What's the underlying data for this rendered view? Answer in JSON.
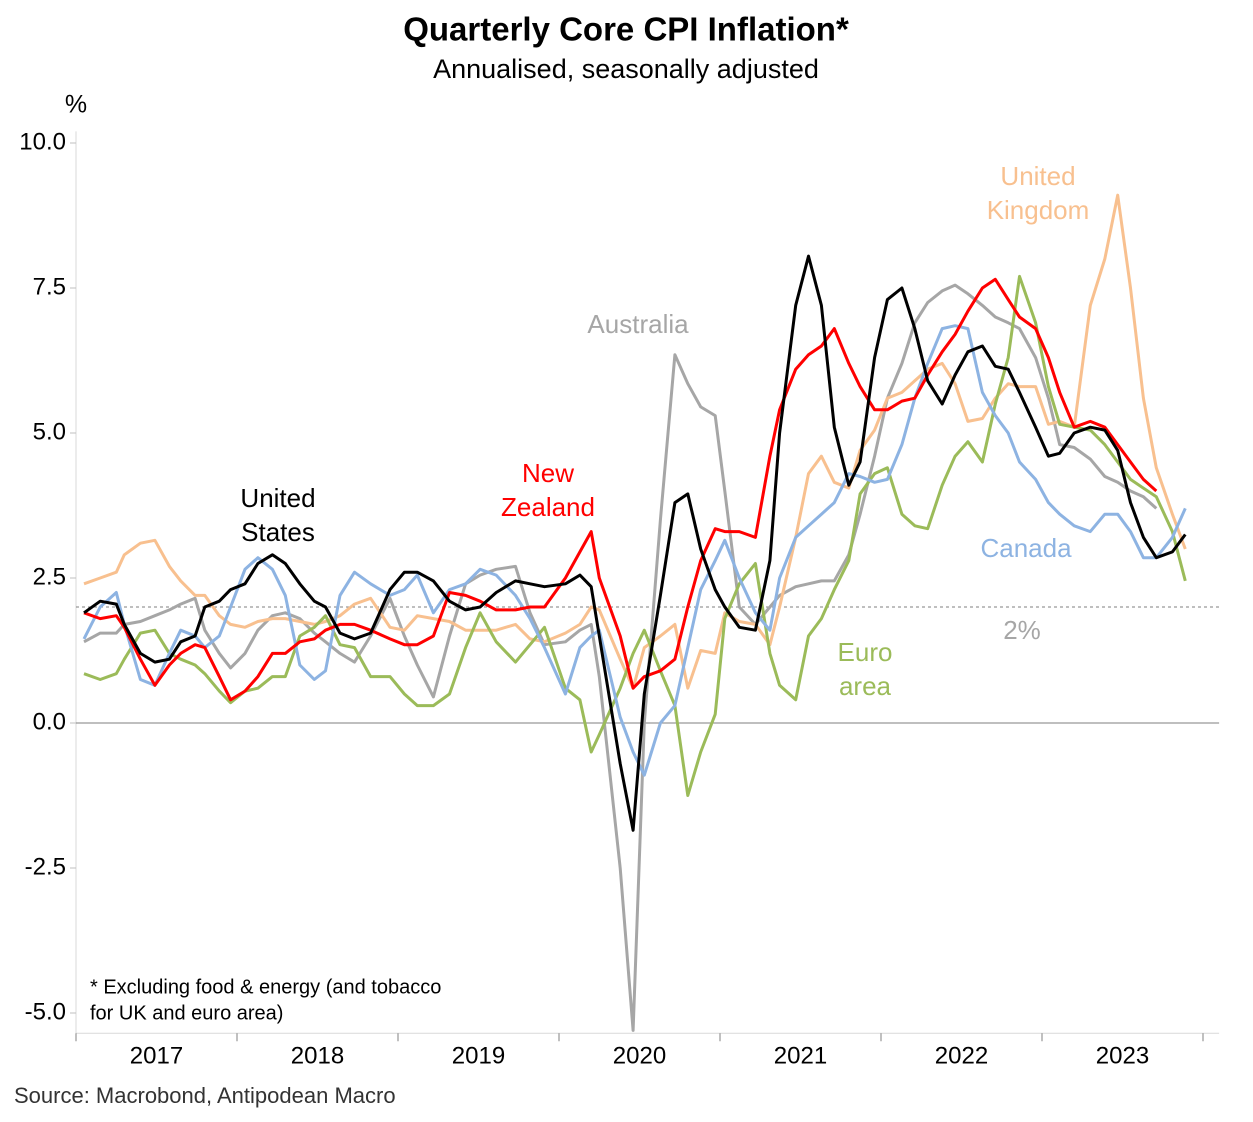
{
  "chart_data": {
    "type": "line",
    "title": "Quarterly Core CPI Inflation*",
    "subtitle": "Annualised, seasonally adjusted",
    "y_unit": "%",
    "footnote": [
      "* Excluding food & energy (and tobacco",
      "for UK and euro area)"
    ],
    "source": "Source: Macrobond, Antipodean Macro",
    "xlim": [
      2017,
      2024.1
    ],
    "xticks": [
      {
        "value": 2017.5,
        "label": "2017"
      },
      {
        "value": 2018.5,
        "label": "2018"
      },
      {
        "value": 2019.5,
        "label": "2019"
      },
      {
        "value": 2020.5,
        "label": "2020"
      },
      {
        "value": 2021.5,
        "label": "2021"
      },
      {
        "value": 2022.5,
        "label": "2022"
      },
      {
        "value": 2023.5,
        "label": "2023"
      }
    ],
    "xtick_marks": [
      2017,
      2018,
      2019,
      2020,
      2021,
      2022,
      2023,
      2024
    ],
    "ylim": [
      -5.35,
      10.2
    ],
    "yticks": [
      {
        "value": 10,
        "label": "10.0"
      },
      7.5,
      {
        "value": 5,
        "label": "5.0"
      },
      2.5,
      {
        "value": 0,
        "label": "0.0"
      },
      -2.5,
      {
        "value": -5,
        "label": "-5.0"
      }
    ],
    "reference_line": {
      "value": 2,
      "label": "2%"
    },
    "x": [
      2017.05,
      2017.15,
      2017.25,
      2017.3,
      2017.4,
      2017.49,
      2017.58,
      2017.65,
      2017.74,
      2017.8,
      2017.89,
      2017.96,
      2018.05,
      2018.13,
      2018.22,
      2018.3,
      2018.39,
      2018.48,
      2018.55,
      2018.64,
      2018.73,
      2018.83,
      2018.95,
      2019.04,
      2019.12,
      2019.22,
      2019.32,
      2019.42,
      2019.51,
      2019.61,
      2019.73,
      2019.82,
      2019.91,
      2020.04,
      2020.13,
      2020.2,
      2020.25,
      2020.38,
      2020.46,
      2020.53,
      2020.63,
      2020.72,
      2020.8,
      2020.88,
      2020.97,
      2021.03,
      2021.12,
      2021.22,
      2021.31,
      2021.37,
      2021.47,
      2021.55,
      2021.63,
      2021.71,
      2021.8,
      2021.87,
      2021.96,
      2022.04,
      2022.13,
      2022.21,
      2022.29,
      2022.38,
      2022.46,
      2022.54,
      2022.63,
      2022.71,
      2022.79,
      2022.86,
      2022.96,
      2023.04,
      2023.11,
      2023.2,
      2023.3,
      2023.39,
      2023.47,
      2023.55,
      2023.63,
      2023.71,
      2023.81,
      2023.89
    ],
    "series": [
      {
        "name": "Australia",
        "color": "#a6a6a6",
        "values": [
          1.4,
          1.55,
          1.55,
          1.7,
          1.75,
          1.85,
          1.95,
          2.05,
          2.15,
          1.6,
          1.2,
          0.95,
          1.2,
          1.6,
          1.85,
          1.9,
          1.8,
          1.55,
          1.4,
          1.2,
          1.05,
          1.5,
          2.15,
          1.5,
          1.0,
          0.45,
          1.5,
          2.4,
          2.55,
          2.65,
          2.7,
          1.9,
          1.35,
          1.4,
          1.6,
          1.7,
          0.8,
          -2.5,
          -5.3,
          0.0,
          3.5,
          6.35,
          5.85,
          5.45,
          5.3,
          4.0,
          2.0,
          1.7,
          2.0,
          2.2,
          2.35,
          2.4,
          2.45,
          2.45,
          2.9,
          3.6,
          4.6,
          5.6,
          6.2,
          6.9,
          7.25,
          7.45,
          7.55,
          7.4,
          7.2,
          7.0,
          6.9,
          6.8,
          6.3,
          5.6,
          4.8,
          4.75,
          4.55,
          4.25,
          4.15,
          4.0,
          3.9,
          3.7,
          null,
          null
        ]
      },
      {
        "name": "United Kingdom",
        "color": "#f8c08f",
        "values": [
          2.4,
          2.5,
          2.6,
          2.9,
          3.1,
          3.15,
          2.7,
          2.45,
          2.2,
          2.2,
          1.85,
          1.7,
          1.65,
          1.75,
          1.8,
          1.8,
          1.75,
          1.7,
          1.75,
          1.85,
          2.05,
          2.15,
          1.65,
          1.6,
          1.85,
          1.8,
          1.75,
          1.6,
          1.6,
          1.6,
          1.7,
          1.45,
          1.4,
          1.55,
          1.7,
          2.0,
          1.95,
          1.1,
          0.6,
          1.3,
          1.5,
          1.7,
          0.6,
          1.25,
          1.2,
          1.9,
          1.75,
          1.7,
          1.35,
          2.0,
          3.2,
          4.3,
          4.6,
          4.15,
          4.05,
          4.7,
          5.05,
          5.6,
          5.7,
          5.9,
          6.1,
          6.2,
          5.85,
          5.2,
          5.25,
          5.6,
          5.85,
          5.8,
          5.8,
          5.15,
          5.2,
          5.1,
          7.2,
          8.0,
          9.1,
          7.5,
          5.6,
          4.4,
          3.6,
          3.0
        ]
      },
      {
        "name": "Euro area",
        "color": "#9bbb59",
        "values": [
          0.85,
          0.75,
          0.85,
          1.1,
          1.55,
          1.6,
          1.2,
          1.1,
          1.0,
          0.85,
          0.55,
          0.35,
          0.55,
          0.6,
          0.8,
          0.8,
          1.5,
          1.65,
          1.85,
          1.35,
          1.3,
          0.8,
          0.8,
          0.5,
          0.3,
          0.3,
          0.5,
          1.3,
          1.9,
          1.4,
          1.05,
          1.35,
          1.65,
          0.6,
          0.4,
          -0.5,
          -0.2,
          0.6,
          1.2,
          1.6,
          0.9,
          0.3,
          -1.25,
          -0.5,
          0.15,
          1.8,
          2.4,
          2.75,
          1.2,
          0.65,
          0.4,
          1.5,
          1.8,
          2.3,
          2.8,
          3.95,
          4.3,
          4.4,
          3.6,
          3.4,
          3.35,
          4.1,
          4.6,
          4.85,
          4.5,
          5.5,
          6.3,
          7.7,
          6.9,
          5.8,
          5.15,
          5.1,
          5.05,
          4.8,
          4.5,
          4.2,
          4.05,
          3.9,
          3.3,
          2.45
        ]
      },
      {
        "name": "Canada",
        "color": "#8db3e2",
        "values": [
          1.45,
          2.0,
          2.25,
          1.7,
          0.75,
          0.65,
          1.2,
          1.6,
          1.5,
          1.3,
          1.5,
          2.0,
          2.65,
          2.85,
          2.65,
          2.2,
          1.0,
          0.75,
          0.9,
          2.2,
          2.6,
          2.4,
          2.2,
          2.3,
          2.55,
          1.9,
          2.3,
          2.4,
          2.65,
          2.55,
          2.2,
          1.8,
          1.3,
          0.5,
          1.3,
          1.5,
          1.6,
          0.1,
          -0.5,
          -0.9,
          0.0,
          0.3,
          1.3,
          2.3,
          2.8,
          3.15,
          2.5,
          1.9,
          1.6,
          2.5,
          3.2,
          3.4,
          3.6,
          3.8,
          4.3,
          4.25,
          4.15,
          4.2,
          4.8,
          5.6,
          6.2,
          6.8,
          6.85,
          6.8,
          5.7,
          5.3,
          5.0,
          4.5,
          4.2,
          3.8,
          3.6,
          3.4,
          3.3,
          3.6,
          3.6,
          3.3,
          2.85,
          2.85,
          3.2,
          3.7
        ]
      },
      {
        "name": "New Zealand",
        "color": "#ff0000",
        "values": [
          1.9,
          1.8,
          1.85,
          1.65,
          1.1,
          0.65,
          1.0,
          1.2,
          1.35,
          1.3,
          0.8,
          0.4,
          0.55,
          0.8,
          1.2,
          1.2,
          1.4,
          1.45,
          1.6,
          1.7,
          1.7,
          1.6,
          1.45,
          1.35,
          1.35,
          1.5,
          2.25,
          2.2,
          2.1,
          1.95,
          1.95,
          2.0,
          2.0,
          2.5,
          2.95,
          3.3,
          2.5,
          1.5,
          0.6,
          0.8,
          0.9,
          1.1,
          2.0,
          2.8,
          3.35,
          3.3,
          3.3,
          3.2,
          4.6,
          5.4,
          6.1,
          6.35,
          6.5,
          6.8,
          6.2,
          5.8,
          5.4,
          5.4,
          5.55,
          5.6,
          6.0,
          6.4,
          6.7,
          7.1,
          7.5,
          7.65,
          7.3,
          7.0,
          6.8,
          6.3,
          5.7,
          5.1,
          5.2,
          5.1,
          4.8,
          4.5,
          4.2,
          4.0,
          null,
          null
        ]
      },
      {
        "name": "United States",
        "color": "#000000",
        "values": [
          1.9,
          2.1,
          2.05,
          1.7,
          1.2,
          1.05,
          1.1,
          1.4,
          1.5,
          2.0,
          2.1,
          2.3,
          2.4,
          2.75,
          2.9,
          2.75,
          2.4,
          2.1,
          2.0,
          1.55,
          1.45,
          1.55,
          2.3,
          2.6,
          2.6,
          2.45,
          2.1,
          1.95,
          2.0,
          2.25,
          2.45,
          2.4,
          2.35,
          2.4,
          2.55,
          2.35,
          1.5,
          -0.7,
          -1.85,
          0.5,
          2.2,
          3.8,
          3.95,
          3.0,
          2.3,
          2.0,
          1.65,
          1.6,
          2.8,
          5.0,
          7.2,
          8.05,
          7.2,
          5.1,
          4.1,
          4.5,
          6.3,
          7.3,
          7.5,
          6.8,
          5.9,
          5.5,
          6.0,
          6.4,
          6.5,
          6.15,
          6.1,
          5.7,
          5.1,
          4.6,
          4.65,
          5.0,
          5.1,
          5.05,
          4.7,
          3.8,
          3.2,
          2.85,
          2.95,
          3.25
        ]
      }
    ]
  }
}
